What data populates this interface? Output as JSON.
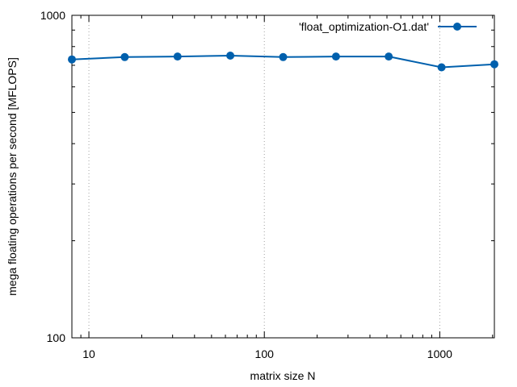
{
  "chart_data": {
    "type": "line",
    "xlabel": "matrix size N",
    "ylabel": "mega floating operations per second [MFLOPS]",
    "xscale": "log",
    "yscale": "log",
    "xlim": [
      8,
      2048
    ],
    "ylim": [
      100,
      1000
    ],
    "x_ticks": [
      {
        "value": 10,
        "label": "10"
      },
      {
        "value": 100,
        "label": "100"
      },
      {
        "value": 1000,
        "label": "1000"
      }
    ],
    "y_ticks": [
      {
        "value": 100,
        "label": "100"
      },
      {
        "value": 1000,
        "label": "1000"
      }
    ],
    "grid": "vertical dotted at major x ticks",
    "legend_position": "top-right",
    "series": [
      {
        "name": "'float_optimization-O1.dat'",
        "color": "#0060ad",
        "marker": "circle",
        "x": [
          8,
          16,
          32,
          64,
          128,
          256,
          512,
          1024,
          2048
        ],
        "y": [
          730,
          742,
          745,
          750,
          742,
          745,
          745,
          690,
          705
        ]
      }
    ]
  }
}
